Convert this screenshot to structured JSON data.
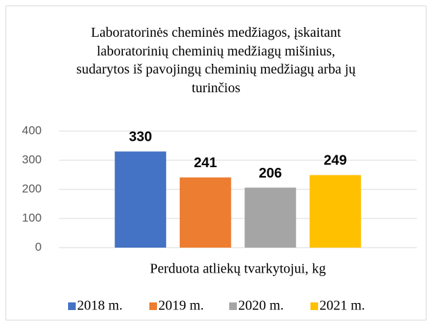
{
  "chart_data": {
    "type": "bar",
    "title": "Laboratorinės cheminės medžiagos, įskaitant laboratorinių cheminių medžiagų mišinius, sudarytos iš pavojingų cheminių medžiagų arba jų turinčios",
    "categories": [
      "Perduota atliekų tvarkytojui, kg"
    ],
    "series": [
      {
        "name": "2018 m.",
        "color": "#4472c4",
        "values": [
          330
        ]
      },
      {
        "name": "2019 m.",
        "color": "#ed7d31",
        "values": [
          241
        ]
      },
      {
        "name": "2020 m.",
        "color": "#a5a5a5",
        "values": [
          206
        ]
      },
      {
        "name": "2021 m.",
        "color": "#ffc000",
        "values": [
          249
        ]
      }
    ],
    "ylim": [
      0,
      400
    ],
    "yticks": [
      0,
      100,
      200,
      300,
      400
    ],
    "grid": true,
    "legend": "bottom"
  }
}
